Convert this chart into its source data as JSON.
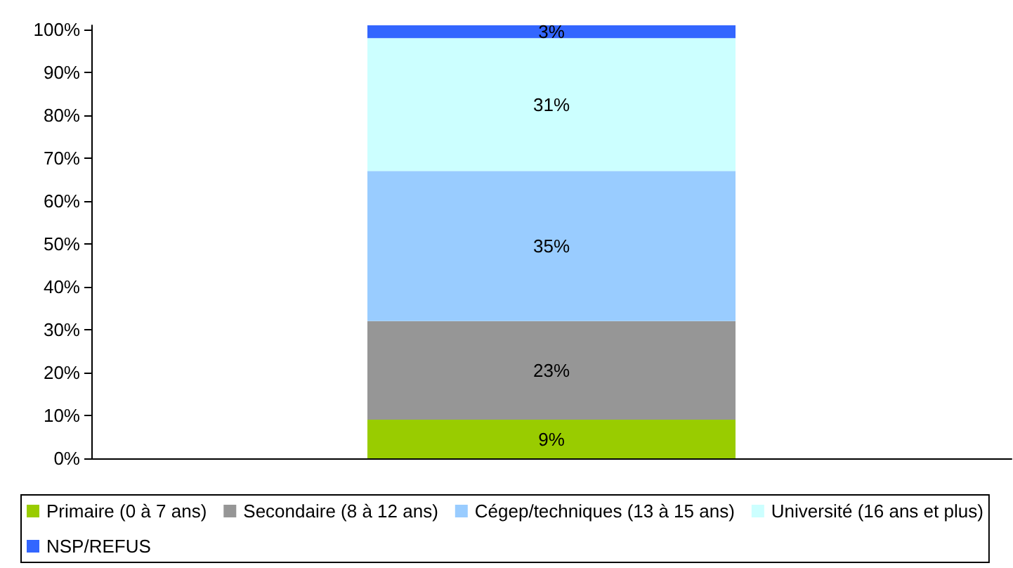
{
  "chart_data": {
    "type": "bar",
    "stacked": true,
    "categories": [
      null
    ],
    "series": [
      {
        "name": "Primaire (0 à 7 ans)",
        "color": "#99cc00",
        "values": [
          9
        ],
        "value_labels": [
          "9%"
        ]
      },
      {
        "name": "Secondaire (8 à 12 ans)",
        "color": "#969696",
        "values": [
          23
        ],
        "value_labels": [
          "23%"
        ]
      },
      {
        "name": "Cégep/techniques (13 à 15 ans)",
        "color": "#99ccff",
        "values": [
          35
        ],
        "value_labels": [
          "35%"
        ]
      },
      {
        "name": "Université (16 ans et plus)",
        "color": "#ccffff",
        "values": [
          31
        ],
        "value_labels": [
          "31%"
        ]
      },
      {
        "name": "NSP/REFUS",
        "color": "#3366ff",
        "values": [
          3
        ],
        "value_labels": [
          "3%"
        ]
      }
    ],
    "ylim": [
      0,
      101
    ],
    "yticks": [
      {
        "value": 0,
        "label": "0%"
      },
      {
        "value": 10,
        "label": "10%"
      },
      {
        "value": 20,
        "label": "20%"
      },
      {
        "value": 30,
        "label": "30%"
      },
      {
        "value": 40,
        "label": "40%"
      },
      {
        "value": 50,
        "label": "50%"
      },
      {
        "value": 60,
        "label": "60%"
      },
      {
        "value": 70,
        "label": "70%"
      },
      {
        "value": 80,
        "label": "80%"
      },
      {
        "value": 90,
        "label": "90%"
      },
      {
        "value": 100,
        "label": "100%"
      }
    ],
    "tick_labels": "y",
    "grid": false,
    "legend": "bottom"
  }
}
